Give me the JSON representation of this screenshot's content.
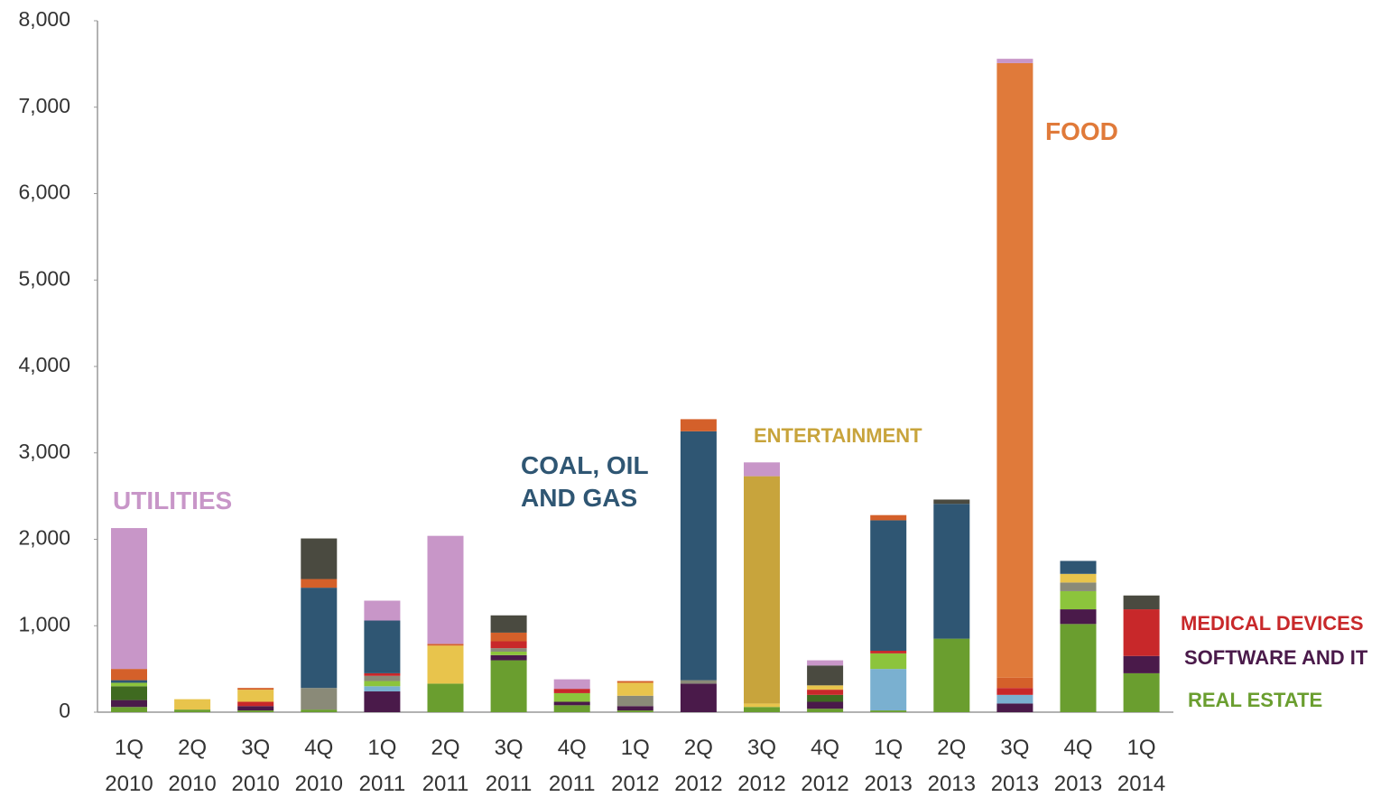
{
  "chart_data": {
    "type": "stacked_bar",
    "categories": [
      "1Q 2010",
      "2Q 2010",
      "3Q 2010",
      "4Q 2010",
      "1Q 2011",
      "2Q 2011",
      "3Q 2011",
      "4Q 2011",
      "1Q 2012",
      "2Q 2012",
      "3Q 2012",
      "4Q 2012",
      "1Q 2013",
      "2Q 2013",
      "3Q 2013",
      "4Q 2013",
      "1Q 2014"
    ],
    "ylim": [
      0,
      8000
    ],
    "yticks": [
      0,
      {
        "value": 1000,
        "label": "1,000"
      },
      {
        "value": 2000,
        "label": "2,000"
      },
      {
        "value": 3000,
        "label": "3,000"
      },
      {
        "value": 4000,
        "label": "4,000"
      },
      {
        "value": 5000,
        "label": "5,000"
      },
      {
        "value": 6000,
        "label": "6,000"
      },
      {
        "value": 7000,
        "label": "7,000"
      },
      {
        "value": 8000,
        "label": "8,000"
      }
    ],
    "series": [
      {
        "name": "REAL ESTATE",
        "color": "#6a9e2f",
        "values": [
          60,
          30,
          20,
          30,
          null,
          330,
          600,
          80,
          20,
          null,
          60,
          40,
          20,
          850,
          null,
          1020,
          450
        ]
      },
      {
        "name": "SOFTWARE AND IT",
        "color": "#4a1a4a",
        "values": [
          80,
          null,
          50,
          null,
          240,
          null,
          60,
          40,
          50,
          330,
          null,
          80,
          null,
          null,
          100,
          170,
          200
        ]
      },
      {
        "color": "#7ab0d0",
        "values": [
          null,
          null,
          null,
          null,
          60,
          null,
          null,
          null,
          null,
          null,
          null,
          null,
          480,
          null,
          100,
          null,
          null
        ]
      },
      {
        "color": "#3f6a20",
        "values": [
          160,
          null,
          null,
          null,
          null,
          null,
          null,
          null,
          null,
          null,
          null,
          80,
          null,
          null,
          null,
          null,
          null
        ]
      },
      {
        "color": "#8cc43c",
        "values": [
          40,
          null,
          null,
          null,
          60,
          null,
          40,
          100,
          null,
          null,
          null,
          null,
          180,
          null,
          null,
          210,
          null
        ]
      },
      {
        "color": "#8a8a78",
        "values": [
          null,
          null,
          null,
          250,
          60,
          null,
          40,
          null,
          120,
          40,
          null,
          null,
          null,
          null,
          null,
          100,
          null
        ]
      },
      {
        "name": "MEDICAL DEVICES",
        "color": "#c8282a",
        "values": [
          null,
          null,
          50,
          null,
          30,
          null,
          80,
          50,
          null,
          null,
          null,
          60,
          30,
          null,
          80,
          null,
          540
        ]
      },
      {
        "color": "#e8c44c",
        "values": [
          null,
          120,
          140,
          null,
          null,
          440,
          null,
          null,
          150,
          null,
          40,
          50,
          null,
          null,
          null,
          100,
          null
        ]
      },
      {
        "name": "COAL, OIL AND GAS",
        "color": "#2f5673",
        "values": [
          30,
          null,
          null,
          1160,
          610,
          null,
          null,
          null,
          null,
          2880,
          null,
          null,
          1510,
          1560,
          null,
          150,
          null
        ]
      },
      {
        "color": "#d4602a",
        "values": [
          130,
          null,
          20,
          100,
          null,
          20,
          100,
          null,
          20,
          140,
          null,
          null,
          60,
          null,
          120,
          null,
          null
        ]
      },
      {
        "name": "ENTERTAINMENT",
        "color": "#c8a43c",
        "values": [
          null,
          null,
          null,
          null,
          null,
          null,
          null,
          null,
          null,
          null,
          2630,
          null,
          null,
          null,
          null,
          null,
          null
        ]
      },
      {
        "name": "FOOD",
        "color": "#e07a3a",
        "values": [
          null,
          null,
          null,
          null,
          null,
          null,
          null,
          null,
          null,
          null,
          null,
          null,
          null,
          null,
          7110,
          null,
          null
        ]
      },
      {
        "color": "#4a4a40",
        "values": [
          null,
          null,
          null,
          470,
          null,
          null,
          200,
          null,
          null,
          null,
          null,
          230,
          null,
          50,
          null,
          null,
          160
        ]
      },
      {
        "name": "UTILITIES",
        "color": "#c896c8",
        "values": [
          1630,
          null,
          null,
          null,
          230,
          1250,
          null,
          110,
          null,
          null,
          160,
          60,
          null,
          null,
          50,
          null,
          null
        ]
      }
    ]
  }
}
